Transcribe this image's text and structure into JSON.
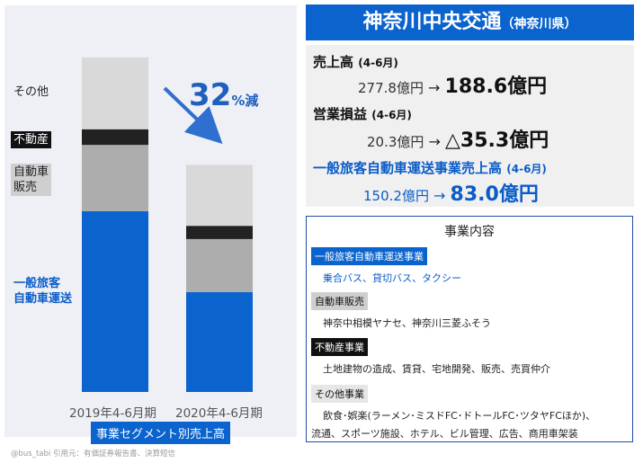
{
  "chart_data": {
    "type": "bar",
    "stacked": true,
    "categories": [
      "2019年4-6月期",
      "2020年4-6月期"
    ],
    "series": [
      {
        "name": "一般旅客自動車運送",
        "values": [
          150.2,
          83.0
        ],
        "color": "#0b63ce"
      },
      {
        "name": "自動車販売",
        "values": [
          55,
          44
        ],
        "color": "#adadad"
      },
      {
        "name": "不動産",
        "values": [
          13,
          11
        ],
        "color": "#222222"
      },
      {
        "name": "その他",
        "values": [
          59.6,
          50.6
        ],
        "color": "#d9d9d9"
      }
    ],
    "totals": [
      277.8,
      188.6
    ],
    "xlabel": "事業セグメント別売上高",
    "annotation": {
      "value": "32",
      "unit": "%減"
    },
    "grid": false
  },
  "segment_labels": {
    "other": "その他",
    "real_estate": "不動産",
    "car_sales": "自動車\n販売",
    "bus": "一般旅客\n自動車運送"
  },
  "source_note": "@bus_tabi 引用元：有価証券報告書、決算短信",
  "company": {
    "name": "神奈川中央交通",
    "pref": "（神奈川県）"
  },
  "metrics": [
    {
      "title": "売上高",
      "period": "(4-6月)",
      "before": "277.8億円",
      "arrow": "→",
      "after": "188.6億円",
      "style": "black"
    },
    {
      "title": "営業損益",
      "period": "(4-6月)",
      "before": "20.3億円",
      "arrow": "→",
      "after": "△35.3億円",
      "style": "black"
    },
    {
      "title": "一般旅客自動車運送事業売上高",
      "period": "(4-6月)",
      "before": "150.2億円",
      "arrow": "→",
      "after": "83.0億円",
      "style": "blue"
    }
  ],
  "business": {
    "title": "事業内容",
    "sections": [
      {
        "heading": "一般旅客自動車運送事業",
        "desc": [
          "乗合バス、貸切バス、タクシー"
        ],
        "style": "blue"
      },
      {
        "heading": "自動車販売",
        "desc": [
          "神奈中相模ヤナセ、神奈川三菱ふそう"
        ],
        "style": "gray"
      },
      {
        "heading": "不動産事業",
        "desc": [
          "土地建物の造成、賃貸、宅地開発、販売、売買仲介"
        ],
        "style": "dark"
      },
      {
        "heading": "その他事業",
        "desc": [
          "飲食･娯楽(ラーメン･ミスドFC･ドトールFC･ツタヤFCほか)、",
          "流通、スポーツ施設、ホテル、ビル管理、広告、商用車架装"
        ],
        "style": "light"
      }
    ]
  }
}
